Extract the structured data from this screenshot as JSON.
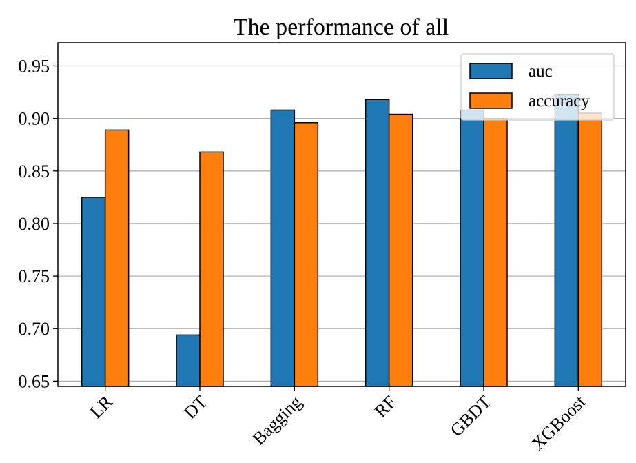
{
  "chart_data": {
    "type": "bar",
    "title": "The performance of all",
    "xlabel": "",
    "ylabel": "",
    "categories": [
      "LR",
      "DT",
      "Bagging",
      "RF",
      "GBDT",
      "XGBoost"
    ],
    "series": [
      {
        "name": "auc",
        "color": "#1f77b4",
        "values": [
          0.825,
          0.694,
          0.908,
          0.918,
          0.908,
          0.923
        ]
      },
      {
        "name": "accuracy",
        "color": "#ff7f0e",
        "values": [
          0.889,
          0.868,
          0.896,
          0.904,
          0.9,
          0.905
        ]
      }
    ],
    "ylim": [
      0.645,
      0.972
    ],
    "yticks": [
      "0.65",
      "0.70",
      "0.75",
      "0.80",
      "0.85",
      "0.90",
      "0.95"
    ],
    "grid": "horizontal",
    "legend": "top-right"
  }
}
